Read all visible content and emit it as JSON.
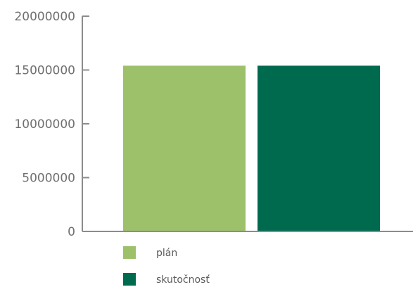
{
  "chart_data": {
    "type": "bar",
    "categories": [
      "plán",
      "skutočnosť"
    ],
    "values": [
      15400000,
      15400000
    ],
    "colors": [
      "#9dc16b",
      "#006a4f"
    ],
    "ylim": [
      0,
      20000000
    ],
    "yticks": [
      0,
      5000000,
      10000000,
      15000000,
      20000000
    ],
    "ytick_labels": [
      "0",
      "5000000",
      "10000000",
      "15000000",
      "20000000"
    ],
    "grid": false,
    "legend": {
      "placement": "bottom",
      "entries": [
        {
          "label": "plán",
          "color": "#9dc16b"
        },
        {
          "label": "skutočnosť",
          "color": "#006a4f"
        }
      ]
    },
    "axis_color": "#8c8c8c"
  }
}
